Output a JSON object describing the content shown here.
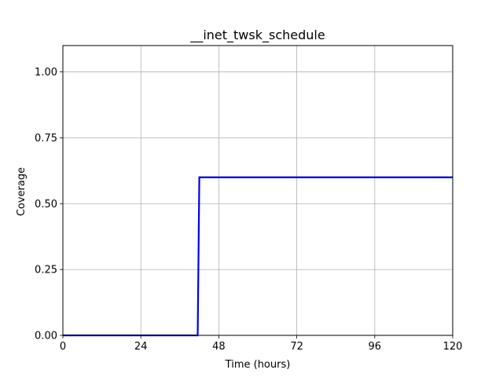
{
  "chart_data": {
    "type": "line",
    "title": "__inet_twsk_schedule",
    "xlabel": "Time (hours)",
    "ylabel": "Coverage",
    "xlim": [
      0,
      120
    ],
    "ylim": [
      0,
      1.1
    ],
    "xticks": [
      0,
      24,
      48,
      72,
      96,
      120
    ],
    "xtick_labels": [
      "0",
      "24",
      "48",
      "72",
      "96",
      "120"
    ],
    "yticks": [
      0.0,
      0.25,
      0.5,
      0.75,
      1.0
    ],
    "ytick_labels": [
      "0.00",
      "0.25",
      "0.50",
      "0.75",
      "1.00"
    ],
    "grid": true,
    "series": [
      {
        "color": "#0000ee",
        "x": [
          0,
          41.5,
          42,
          120
        ],
        "y": [
          0,
          0,
          0.6,
          0.6
        ]
      }
    ]
  }
}
